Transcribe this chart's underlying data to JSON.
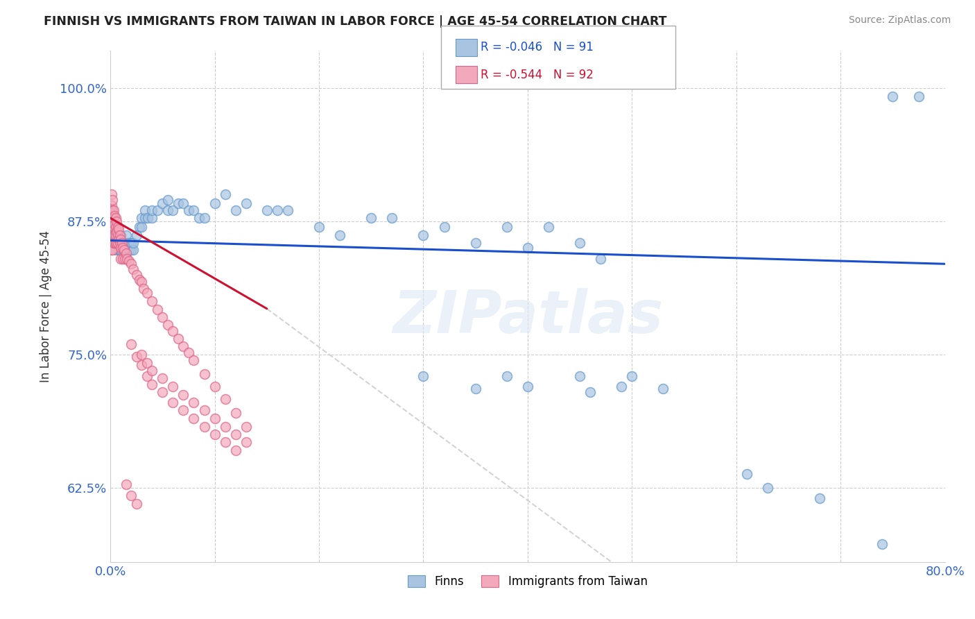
{
  "title": "FINNISH VS IMMIGRANTS FROM TAIWAN IN LABOR FORCE | AGE 45-54 CORRELATION CHART",
  "source": "Source: ZipAtlas.com",
  "ylabel": "In Labor Force | Age 45-54",
  "xlim": [
    0.0,
    0.8
  ],
  "ylim": [
    0.555,
    1.035
  ],
  "xticks": [
    0.0,
    0.1,
    0.2,
    0.3,
    0.4,
    0.5,
    0.6,
    0.7,
    0.8
  ],
  "xticklabels": [
    "0.0%",
    "",
    "",
    "",
    "",
    "",
    "",
    "",
    "80.0%"
  ],
  "yticks": [
    0.625,
    0.75,
    0.875,
    1.0
  ],
  "yticklabels": [
    "62.5%",
    "75.0%",
    "87.5%",
    "100.0%"
  ],
  "finns_color": "#a8c4e0",
  "finns_edge_color": "#6699cc",
  "taiwan_color": "#f4a8bc",
  "taiwan_edge_color": "#dd6688",
  "finns_line_color": "#1a4fcc",
  "taiwan_line_color": "#cc1133",
  "diagonal_color": "#cccccc",
  "watermark": "ZIPatlas",
  "finns_scatter": [
    [
      0.001,
      0.87
    ],
    [
      0.001,
      0.878
    ],
    [
      0.001,
      0.885
    ],
    [
      0.002,
      0.862
    ],
    [
      0.002,
      0.87
    ],
    [
      0.002,
      0.878
    ],
    [
      0.002,
      0.885
    ],
    [
      0.003,
      0.855
    ],
    [
      0.003,
      0.862
    ],
    [
      0.003,
      0.87
    ],
    [
      0.003,
      0.878
    ],
    [
      0.004,
      0.855
    ],
    [
      0.004,
      0.862
    ],
    [
      0.004,
      0.87
    ],
    [
      0.005,
      0.848
    ],
    [
      0.005,
      0.855
    ],
    [
      0.005,
      0.862
    ],
    [
      0.005,
      0.87
    ],
    [
      0.006,
      0.855
    ],
    [
      0.006,
      0.862
    ],
    [
      0.007,
      0.848
    ],
    [
      0.007,
      0.855
    ],
    [
      0.007,
      0.862
    ],
    [
      0.008,
      0.848
    ],
    [
      0.008,
      0.855
    ],
    [
      0.008,
      0.862
    ],
    [
      0.009,
      0.848
    ],
    [
      0.009,
      0.855
    ],
    [
      0.01,
      0.848
    ],
    [
      0.01,
      0.855
    ],
    [
      0.01,
      0.862
    ],
    [
      0.012,
      0.848
    ],
    [
      0.012,
      0.855
    ],
    [
      0.015,
      0.848
    ],
    [
      0.015,
      0.855
    ],
    [
      0.015,
      0.862
    ],
    [
      0.018,
      0.848
    ],
    [
      0.018,
      0.855
    ],
    [
      0.02,
      0.848
    ],
    [
      0.02,
      0.855
    ],
    [
      0.022,
      0.848
    ],
    [
      0.022,
      0.855
    ],
    [
      0.025,
      0.862
    ],
    [
      0.028,
      0.87
    ],
    [
      0.03,
      0.87
    ],
    [
      0.03,
      0.878
    ],
    [
      0.033,
      0.878
    ],
    [
      0.033,
      0.885
    ],
    [
      0.036,
      0.878
    ],
    [
      0.04,
      0.878
    ],
    [
      0.04,
      0.885
    ],
    [
      0.045,
      0.885
    ],
    [
      0.05,
      0.892
    ],
    [
      0.055,
      0.885
    ],
    [
      0.055,
      0.895
    ],
    [
      0.06,
      0.885
    ],
    [
      0.065,
      0.892
    ],
    [
      0.07,
      0.892
    ],
    [
      0.075,
      0.885
    ],
    [
      0.08,
      0.885
    ],
    [
      0.085,
      0.878
    ],
    [
      0.09,
      0.878
    ],
    [
      0.1,
      0.892
    ],
    [
      0.11,
      0.9
    ],
    [
      0.12,
      0.885
    ],
    [
      0.13,
      0.892
    ],
    [
      0.15,
      0.885
    ],
    [
      0.16,
      0.885
    ],
    [
      0.17,
      0.885
    ],
    [
      0.2,
      0.87
    ],
    [
      0.22,
      0.862
    ],
    [
      0.25,
      0.878
    ],
    [
      0.27,
      0.878
    ],
    [
      0.3,
      0.862
    ],
    [
      0.32,
      0.87
    ],
    [
      0.35,
      0.855
    ],
    [
      0.38,
      0.87
    ],
    [
      0.4,
      0.85
    ],
    [
      0.42,
      0.87
    ],
    [
      0.45,
      0.855
    ],
    [
      0.47,
      0.84
    ],
    [
      0.3,
      0.73
    ],
    [
      0.35,
      0.718
    ],
    [
      0.38,
      0.73
    ],
    [
      0.4,
      0.72
    ],
    [
      0.45,
      0.73
    ],
    [
      0.46,
      0.715
    ],
    [
      0.49,
      0.72
    ],
    [
      0.5,
      0.73
    ],
    [
      0.53,
      0.718
    ],
    [
      0.61,
      0.638
    ],
    [
      0.63,
      0.625
    ],
    [
      0.68,
      0.615
    ],
    [
      0.74,
      0.572
    ],
    [
      0.75,
      0.992
    ],
    [
      0.775,
      0.992
    ]
  ],
  "taiwan_scatter": [
    [
      0.001,
      0.9
    ],
    [
      0.001,
      0.89
    ],
    [
      0.001,
      0.88
    ],
    [
      0.001,
      0.87
    ],
    [
      0.001,
      0.862
    ],
    [
      0.001,
      0.855
    ],
    [
      0.001,
      0.848
    ],
    [
      0.002,
      0.895
    ],
    [
      0.002,
      0.885
    ],
    [
      0.002,
      0.875
    ],
    [
      0.002,
      0.865
    ],
    [
      0.002,
      0.855
    ],
    [
      0.002,
      0.848
    ],
    [
      0.003,
      0.885
    ],
    [
      0.003,
      0.878
    ],
    [
      0.003,
      0.87
    ],
    [
      0.003,
      0.862
    ],
    [
      0.003,
      0.855
    ],
    [
      0.004,
      0.88
    ],
    [
      0.004,
      0.872
    ],
    [
      0.004,
      0.862
    ],
    [
      0.004,
      0.855
    ],
    [
      0.005,
      0.878
    ],
    [
      0.005,
      0.87
    ],
    [
      0.005,
      0.862
    ],
    [
      0.005,
      0.855
    ],
    [
      0.006,
      0.875
    ],
    [
      0.006,
      0.865
    ],
    [
      0.006,
      0.855
    ],
    [
      0.007,
      0.87
    ],
    [
      0.007,
      0.862
    ],
    [
      0.007,
      0.855
    ],
    [
      0.008,
      0.868
    ],
    [
      0.008,
      0.858
    ],
    [
      0.009,
      0.862
    ],
    [
      0.009,
      0.855
    ],
    [
      0.01,
      0.858
    ],
    [
      0.01,
      0.85
    ],
    [
      0.01,
      0.84
    ],
    [
      0.011,
      0.855
    ],
    [
      0.012,
      0.85
    ],
    [
      0.012,
      0.84
    ],
    [
      0.013,
      0.848
    ],
    [
      0.014,
      0.84
    ],
    [
      0.015,
      0.845
    ],
    [
      0.016,
      0.84
    ],
    [
      0.018,
      0.838
    ],
    [
      0.02,
      0.835
    ],
    [
      0.022,
      0.83
    ],
    [
      0.025,
      0.825
    ],
    [
      0.028,
      0.82
    ],
    [
      0.03,
      0.818
    ],
    [
      0.032,
      0.812
    ],
    [
      0.035,
      0.808
    ],
    [
      0.04,
      0.8
    ],
    [
      0.045,
      0.792
    ],
    [
      0.05,
      0.785
    ],
    [
      0.055,
      0.778
    ],
    [
      0.06,
      0.772
    ],
    [
      0.065,
      0.765
    ],
    [
      0.07,
      0.758
    ],
    [
      0.075,
      0.752
    ],
    [
      0.08,
      0.745
    ],
    [
      0.09,
      0.732
    ],
    [
      0.1,
      0.72
    ],
    [
      0.11,
      0.708
    ],
    [
      0.12,
      0.695
    ],
    [
      0.13,
      0.682
    ],
    [
      0.02,
      0.76
    ],
    [
      0.025,
      0.748
    ],
    [
      0.03,
      0.74
    ],
    [
      0.035,
      0.73
    ],
    [
      0.04,
      0.722
    ],
    [
      0.05,
      0.715
    ],
    [
      0.06,
      0.705
    ],
    [
      0.07,
      0.698
    ],
    [
      0.08,
      0.69
    ],
    [
      0.09,
      0.682
    ],
    [
      0.1,
      0.675
    ],
    [
      0.11,
      0.668
    ],
    [
      0.12,
      0.66
    ],
    [
      0.015,
      0.628
    ],
    [
      0.02,
      0.618
    ],
    [
      0.025,
      0.61
    ],
    [
      0.03,
      0.75
    ],
    [
      0.035,
      0.742
    ],
    [
      0.04,
      0.735
    ],
    [
      0.05,
      0.728
    ],
    [
      0.06,
      0.72
    ],
    [
      0.07,
      0.712
    ],
    [
      0.08,
      0.705
    ],
    [
      0.09,
      0.698
    ],
    [
      0.1,
      0.69
    ],
    [
      0.11,
      0.682
    ],
    [
      0.12,
      0.675
    ],
    [
      0.13,
      0.668
    ]
  ]
}
